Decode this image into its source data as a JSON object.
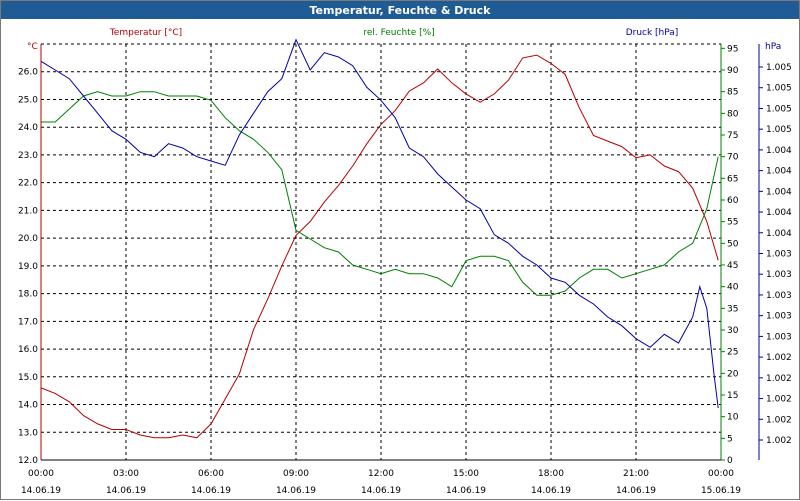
{
  "window": {
    "title": "Temperatur, Feuchte & Druck"
  },
  "colors": {
    "temperature": "#b80000",
    "humidity": "#008000",
    "pressure": "#0000a8",
    "grid": "#000000",
    "titlebar": "#1f5c96"
  },
  "chart_data": {
    "type": "line",
    "title": "Temperatur, Feuchte & Druck",
    "grid": true,
    "x_ticks": [
      {
        "time": "00:00",
        "date": "14.06.19"
      },
      {
        "time": "03:00",
        "date": "14.06.19"
      },
      {
        "time": "06:00",
        "date": "14.06.19"
      },
      {
        "time": "09:00",
        "date": "14.06.19"
      },
      {
        "time": "12:00",
        "date": "14.06.19"
      },
      {
        "time": "15:00",
        "date": "14.06.19"
      },
      {
        "time": "18:00",
        "date": "14.06.19"
      },
      {
        "time": "21:00",
        "date": "14.06.19"
      },
      {
        "time": "00:00",
        "date": "15.06.19"
      }
    ],
    "xlim_hours": [
      0,
      24
    ],
    "left_axis": {
      "label": "Temperatur [°C]",
      "unit": "°C",
      "ylim": [
        12.0,
        27.0
      ],
      "ticks": [
        "12.0",
        "13.0",
        "14.0",
        "15.0",
        "16.0",
        "17.0",
        "18.0",
        "19.0",
        "20.0",
        "21.0",
        "22.0",
        "23.0",
        "24.0",
        "25.0",
        "26.0"
      ]
    },
    "right_axis_1": {
      "label": "rel. Feuchte [%]",
      "unit": "%",
      "ylim": [
        0,
        96
      ],
      "ticks": [
        "0",
        "5",
        "10",
        "15",
        "20",
        "25",
        "30",
        "35",
        "40",
        "45",
        "50",
        "55",
        "60",
        "65",
        "70",
        "75",
        "80",
        "85",
        "90",
        "95"
      ]
    },
    "right_axis_2": {
      "label": "Druck [hPa]",
      "unit": "hPa",
      "ticks": [
        "1.002",
        "1.002",
        "1.002",
        "1.002",
        "1.002",
        "1.003",
        "1.003",
        "1.003",
        "1.003",
        "1.003",
        "1.004",
        "1.004",
        "1.004",
        "1.004",
        "1.004",
        "1.005",
        "1.005",
        "1.005",
        "1.005"
      ]
    },
    "series": [
      {
        "name": "Temperatur [°C]",
        "axis": "left",
        "x": [
          0,
          0.5,
          1,
          1.5,
          2,
          2.5,
          3,
          3.5,
          4,
          4.5,
          5,
          5.5,
          6,
          6.5,
          7,
          7.5,
          8,
          8.5,
          9,
          9.5,
          10,
          10.5,
          11,
          11.5,
          12,
          12.5,
          13,
          13.5,
          14,
          14.5,
          15,
          15.5,
          16,
          16.5,
          17,
          17.5,
          18,
          18.5,
          19,
          19.5,
          20,
          20.5,
          21,
          21.5,
          22,
          22.5,
          23,
          23.5,
          23.9
        ],
        "values": [
          14.6,
          14.4,
          14.1,
          13.6,
          13.3,
          13.1,
          13.1,
          12.9,
          12.8,
          12.8,
          12.9,
          12.8,
          13.3,
          14.2,
          15.1,
          16.7,
          17.8,
          19.0,
          20.1,
          20.6,
          21.3,
          21.9,
          22.6,
          23.4,
          24.1,
          24.6,
          25.3,
          25.6,
          26.1,
          25.6,
          25.2,
          24.9,
          25.2,
          25.7,
          26.5,
          26.6,
          26.3,
          25.9,
          24.7,
          23.7,
          23.5,
          23.3,
          22.9,
          23.0,
          22.6,
          22.4,
          21.8,
          20.6,
          19.2
        ]
      },
      {
        "name": "rel. Feuchte [%]",
        "axis": "right_1",
        "x": [
          0,
          0.5,
          1,
          1.5,
          2,
          2.5,
          3,
          3.5,
          4,
          4.5,
          5,
          5.5,
          6,
          6.5,
          7,
          7.5,
          8,
          8.5,
          9,
          9.5,
          10,
          10.5,
          11,
          11.5,
          12,
          12.5,
          13,
          13.5,
          14,
          14.5,
          15,
          15.5,
          16,
          16.5,
          17,
          17.5,
          18,
          18.5,
          19,
          19.5,
          20,
          20.5,
          21,
          21.5,
          22,
          22.5,
          23,
          23.5,
          23.9
        ],
        "values": [
          78,
          78,
          81,
          84,
          85,
          84,
          84,
          85,
          85,
          84,
          84,
          84,
          83,
          79,
          76,
          74,
          71,
          67,
          53,
          51,
          49,
          48,
          45,
          44,
          43,
          44,
          43,
          43,
          42,
          40,
          46,
          47,
          47,
          46,
          41,
          38,
          38,
          39,
          42,
          44,
          44,
          42,
          43,
          44,
          45,
          48,
          50,
          58,
          70
        ]
      },
      {
        "name": "Druck [hPa]",
        "axis": "right_2",
        "x": [
          0,
          0.5,
          1,
          1.5,
          2,
          2.5,
          3,
          3.5,
          4,
          4.5,
          5,
          5.5,
          6,
          6.5,
          7,
          7.5,
          8,
          8.5,
          9,
          9.5,
          10,
          10.5,
          11,
          11.5,
          12,
          12.5,
          13,
          13.5,
          14,
          14.5,
          15,
          15.5,
          16,
          16.5,
          17,
          17.5,
          18,
          18.5,
          19,
          19.5,
          20,
          20.5,
          21,
          21.5,
          22,
          22.5,
          23,
          23.25,
          23.5,
          23.75,
          23.9
        ],
        "values": [
          92,
          90,
          88,
          84,
          80,
          76,
          74,
          71,
          70,
          73,
          72,
          70,
          69,
          68,
          75,
          80,
          85,
          88,
          97,
          90,
          94,
          93,
          91,
          86,
          83,
          79,
          72,
          70,
          66,
          63,
          60,
          58,
          52,
          50,
          47,
          45,
          42,
          41,
          38,
          36,
          33,
          31,
          28,
          26,
          29,
          27,
          33,
          40,
          35,
          20,
          12
        ]
      }
    ]
  }
}
